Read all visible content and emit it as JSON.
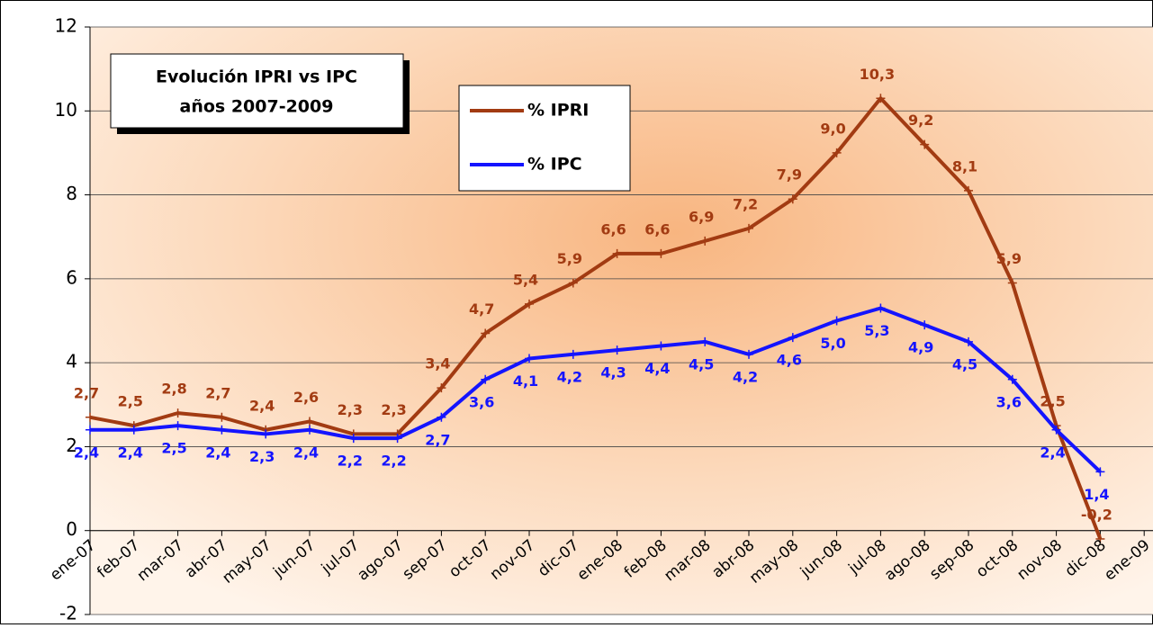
{
  "chart_data": {
    "type": "line",
    "title": "Evolución IPRI vs IPC",
    "subtitle": "años 2007-2009",
    "categories": [
      "ene-07",
      "feb-07",
      "mar-07",
      "abr-07",
      "may-07",
      "jun-07",
      "jul-07",
      "ago-07",
      "sep-07",
      "oct-07",
      "nov-07",
      "dic-07",
      "ene-08",
      "feb-08",
      "mar-08",
      "abr-08",
      "may-08",
      "jun-08",
      "jul-08",
      "ago-08",
      "sep-08",
      "oct-08",
      "nov-08",
      "dic-08",
      "ene-09"
    ],
    "series": [
      {
        "name": "% IPRI",
        "color": "#a23b12",
        "values": [
          2.7,
          2.5,
          2.8,
          2.7,
          2.4,
          2.6,
          2.3,
          2.3,
          3.4,
          4.7,
          5.4,
          5.9,
          6.6,
          6.6,
          6.9,
          7.2,
          7.9,
          9.0,
          10.3,
          9.2,
          8.1,
          5.9,
          2.5,
          -0.2,
          null
        ],
        "value_labels": [
          "2,7",
          "2,5",
          "2,8",
          "2,7",
          "2,4",
          "2,6",
          "2,3",
          "2,3",
          "3,4",
          "4,7",
          "5,4",
          "5,9",
          "6,6",
          "6,6",
          "6,9",
          "7,2",
          "7,9",
          "9,0",
          "10,3",
          "9,2",
          "8,1",
          "5,9",
          "2,5",
          "-0,2",
          null
        ]
      },
      {
        "name": "% IPC",
        "color": "#1414ff",
        "values": [
          2.4,
          2.4,
          2.5,
          2.4,
          2.3,
          2.4,
          2.2,
          2.2,
          2.7,
          3.6,
          4.1,
          4.2,
          4.3,
          4.4,
          4.5,
          4.2,
          4.6,
          5.0,
          5.3,
          4.9,
          4.5,
          3.6,
          2.4,
          1.4,
          null
        ],
        "value_labels": [
          "2,4",
          "2,4",
          "2,5",
          "2,4",
          "2,3",
          "2,4",
          "2,2",
          "2,2",
          "2,7",
          "3,6",
          "4,1",
          "4,2",
          "4,3",
          "4,4",
          "4,5",
          "4,2",
          "4,6",
          "5,0",
          "5,3",
          "4,9",
          "4,5",
          "3,6",
          "2,4",
          "1,4",
          null
        ]
      }
    ],
    "ylim": [
      -2,
      12
    ],
    "yticks": [
      -2,
      0,
      2,
      4,
      6,
      8,
      10,
      12
    ],
    "grid": true,
    "legend": "top"
  }
}
